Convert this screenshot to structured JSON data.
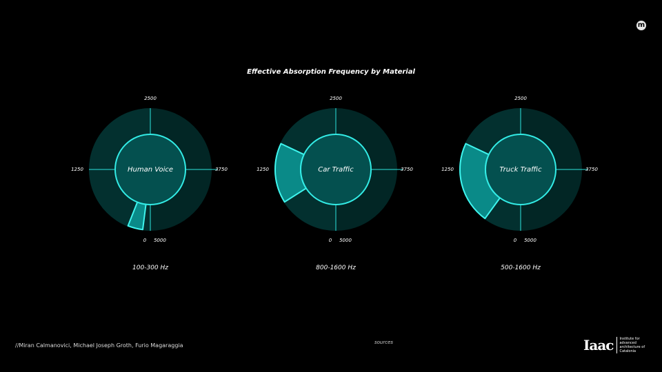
{
  "chart_data": {
    "type": "radial-range",
    "title": "Effective Absorption Frequency by Material",
    "axis": {
      "min": 0,
      "max": 5000,
      "ticks": [
        0,
        1250,
        2500,
        3750,
        5000
      ],
      "unit": "Hz"
    },
    "series": [
      {
        "name": "Human Voice",
        "range": [
          100,
          300
        ],
        "label": "100-300 Hz"
      },
      {
        "name": "Car Traffic",
        "range": [
          800,
          1600
        ],
        "label": "800-1600 Hz"
      },
      {
        "name": "Truck Traffic",
        "range": [
          500,
          1600
        ],
        "label": "500-1600 Hz"
      }
    ]
  },
  "footer": {
    "credits": "//Miran Calmanovici,  Michael Joseph Groth, Furio Magaraggia",
    "sources": "sources",
    "logo_mark": "Iaac",
    "logo_text": "Institute for advanced architecture of Catalonia"
  },
  "top_icon": "m"
}
